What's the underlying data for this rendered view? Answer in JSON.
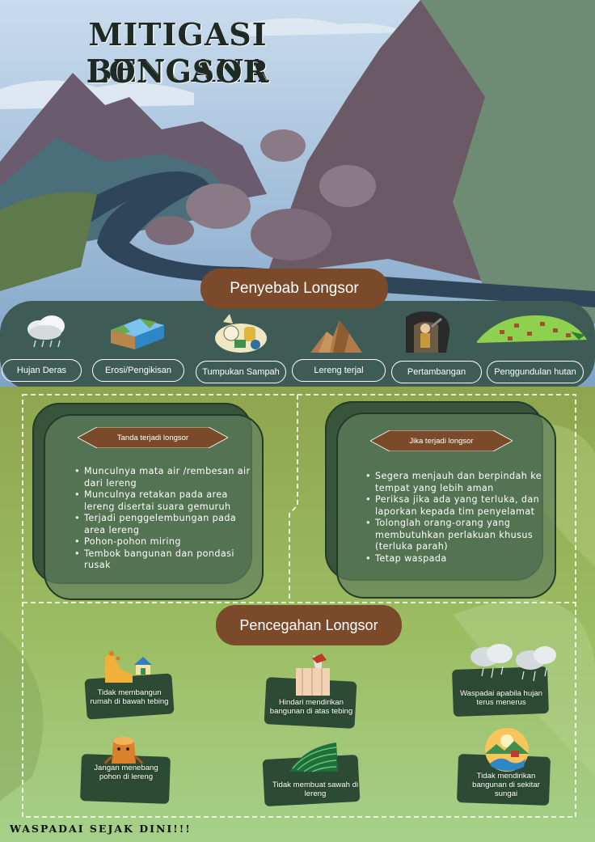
{
  "title": {
    "line1": "MITIGASI BENCANA",
    "line2": "LONGSOR"
  },
  "causes": {
    "heading": "Penyebab Longsor",
    "items": [
      {
        "label": "Hujan Deras",
        "icon": "rain-cloud-icon"
      },
      {
        "label": "Erosi/Pengikisan",
        "icon": "erosion-icon"
      },
      {
        "label": "Tumpukan Sampah",
        "icon": "garbage-pile-icon"
      },
      {
        "label": "Lereng terjal",
        "icon": "steep-slope-icon"
      },
      {
        "label": "Pertambangan",
        "icon": "mining-icon"
      },
      {
        "label": "Penggundulan hutan",
        "icon": "deforestation-icon"
      }
    ]
  },
  "signs": {
    "heading": "Tanda terjadi longsor",
    "items": [
      "Munculnya mata air /rembesan air dari lereng",
      "Munculnya retakan pada area lereng disertai suara gemuruh",
      "Terjadi penggelembungan pada area lereng",
      "Pohon-pohon miring",
      "Tembok bangunan dan pondasi rusak"
    ]
  },
  "actions": {
    "heading": "Jika terjadi longsor",
    "items": [
      "Segera menjauh dan berpindah ke tempat yang lebih aman",
      "Periksa jika ada yang terluka, dan laporkan kepada tim penyelamat",
      "Tolonglah orang-orang yang membutuhkan perlakuan khusus (terluka parah)",
      "Tetap waspada"
    ]
  },
  "prevention": {
    "heading": "Pencegahan Longsor",
    "items": [
      {
        "label": "Tidak membangun rumah di bawah tebing",
        "icon": "house-under-cliff-icon"
      },
      {
        "label": "Hindari mendirikan bangunan di atas tebing",
        "icon": "house-on-cliff-icon"
      },
      {
        "label": "Waspadai apabila hujan terus menerus",
        "icon": "rain-cloud-icon"
      },
      {
        "label": "Jangan menebang pohon di lereng",
        "icon": "tree-stump-icon"
      },
      {
        "label": "Tidak membuat sawah di lereng",
        "icon": "rice-terrace-icon"
      },
      {
        "label": "Tidak mendirikan bangunan di sekitar sungai",
        "icon": "river-icon"
      }
    ]
  },
  "footer": "WASPADAI SEJAK DINI!!!",
  "colors": {
    "pill": "#7a4a2a",
    "card": "#5f8a5c",
    "band": "#3e5c55"
  }
}
